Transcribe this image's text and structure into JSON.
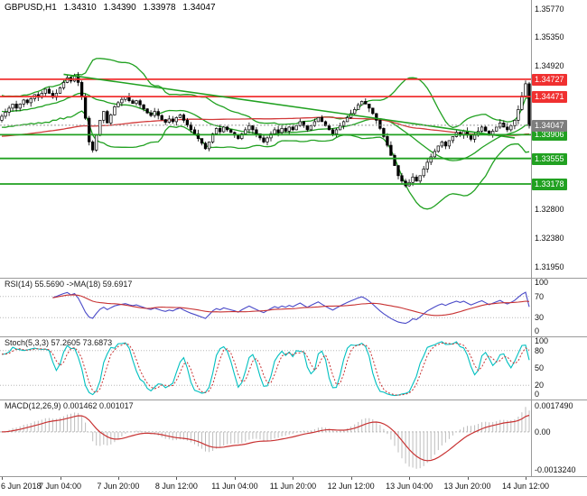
{
  "header": {
    "symbol": "GBPUSD,H1",
    "open": "1.34310",
    "high": "1.34390",
    "low": "1.33978",
    "close": "1.34047"
  },
  "colors": {
    "background": "#ffffff",
    "bull_candle": "#ffffff",
    "bear_candle": "#000000",
    "candle_outline": "#000000",
    "resistance": "#f03030",
    "support": "#21a121",
    "bollinger": "#21a121",
    "ma_red": "#d23a3a",
    "trendline": "#21a121",
    "current_line": "#999999",
    "current_badge": "#7d7d7d",
    "rsi_line": "#4a4ac8",
    "rsi_ma": "#c83232",
    "stoch_k": "#00c0c0",
    "stoch_d": "#c83232",
    "macd_hist": "#bdbdbd",
    "macd_signal": "#c83232",
    "grid_dotted": "#b8b8b8",
    "separator": "#9a9a9a",
    "axis_text": "#111111"
  },
  "chart_data": {
    "type": "candlestick",
    "symbol": "GBPUSD",
    "timeframe": "H1",
    "ylim": [
      1.3179,
      1.359
    ],
    "grid": false,
    "closes": [
      1.3418,
      1.3424,
      1.343,
      1.3436,
      1.343,
      1.3436,
      1.3442,
      1.3438,
      1.3444,
      1.345,
      1.3446,
      1.3452,
      1.3458,
      1.3452,
      1.3446,
      1.3452,
      1.346,
      1.3468,
      1.3475,
      1.347,
      1.3478,
      1.3468,
      1.3448,
      1.3415,
      1.338,
      1.3368,
      1.339,
      1.3412,
      1.3425,
      1.3408,
      1.342,
      1.3432,
      1.3438,
      1.3443,
      1.3447,
      1.3441,
      1.3437,
      1.3441,
      1.3435,
      1.3429,
      1.3423,
      1.3419,
      1.3425,
      1.3419,
      1.3413,
      1.3409,
      1.3414,
      1.341,
      1.3416,
      1.342,
      1.3412,
      1.3405,
      1.3398,
      1.3392,
      1.3385,
      1.3378,
      1.337,
      1.338,
      1.3392,
      1.34,
      1.3395,
      1.3402,
      1.3398,
      1.3394,
      1.339,
      1.3385,
      1.3392,
      1.3398,
      1.3404,
      1.3398,
      1.3392,
      1.3386,
      1.338,
      1.3386,
      1.3392,
      1.3398,
      1.3394,
      1.34,
      1.3396,
      1.3402,
      1.3398,
      1.3404,
      1.341,
      1.3404,
      1.3398,
      1.3404,
      1.341,
      1.3416,
      1.341,
      1.3404,
      1.3398,
      1.3392,
      1.3398,
      1.3404,
      1.341,
      1.3416,
      1.3422,
      1.3428,
      1.3435,
      1.344,
      1.3436,
      1.343,
      1.3422,
      1.3412,
      1.34,
      1.3388,
      1.3375,
      1.336,
      1.3345,
      1.333,
      1.3322,
      1.3315,
      1.332,
      1.3328,
      1.3322,
      1.333,
      1.334,
      1.335,
      1.3358,
      1.3366,
      1.3374,
      1.338,
      1.3374,
      1.3382,
      1.3388,
      1.3394,
      1.339,
      1.3396,
      1.339,
      1.3384,
      1.339,
      1.3396,
      1.3402,
      1.3396,
      1.339,
      1.3396,
      1.3402,
      1.3408,
      1.3402,
      1.3398,
      1.3404,
      1.3412,
      1.3428,
      1.3448,
      1.3466,
      1.3404
    ],
    "levels": [
      {
        "price": 1.34727,
        "text": "1.34727",
        "color": "#f03030",
        "kind": "resistance"
      },
      {
        "price": 1.34471,
        "text": "1.34471",
        "color": "#f03030",
        "kind": "resistance"
      },
      {
        "price": 1.33906,
        "text": "1.33906",
        "color": "#21a121",
        "kind": "support"
      },
      {
        "price": 1.33555,
        "text": "1.33555",
        "color": "#21a121",
        "kind": "support"
      },
      {
        "price": 1.33178,
        "text": "1.33178",
        "color": "#21a121",
        "kind": "support"
      }
    ],
    "current_price": {
      "value": 1.34047,
      "text": "1.34047"
    },
    "trendline": {
      "bar1": 17,
      "price1": 1.348,
      "bar2": 141,
      "price2": 1.3386
    },
    "bollinger_period": 20,
    "bollinger_dev": 2,
    "red_ma_period": 90,
    "price_ticks": [
      {
        "text": "1.35770",
        "price": 1.3577
      },
      {
        "text": "1.35350",
        "price": 1.3535
      },
      {
        "text": "1.34920",
        "price": 1.3492
      },
      {
        "text": "1.32800",
        "price": 1.328
      },
      {
        "text": "1.32380",
        "price": 1.3238
      },
      {
        "text": "1.31950",
        "price": 1.3195
      }
    ],
    "time_labels": [
      {
        "text": "6 Jun 2018",
        "bar": 0
      },
      {
        "text": "7 Jun 04:00",
        "bar": 16
      },
      {
        "text": "7 Jun 20:00",
        "bar": 32
      },
      {
        "text": "8 Jun 12:00",
        "bar": 48
      },
      {
        "text": "11 Jun 04:00",
        "bar": 64
      },
      {
        "text": "11 Jun 20:00",
        "bar": 80
      },
      {
        "text": "12 Jun 12:00",
        "bar": 96
      },
      {
        "text": "13 Jun 04:00",
        "bar": 112
      },
      {
        "text": "13 Jun 20:00",
        "bar": 128
      },
      {
        "text": "14 Jun 12:00",
        "bar": 144
      }
    ],
    "panels": {
      "rsi": {
        "label": "RSI(14) 55.5690 ->MA(18) 59.6917",
        "period": 14,
        "ma_period": 18,
        "current": 55.569,
        "ma_current": 59.6917,
        "levels": [
          70,
          30
        ],
        "axis": [
          {
            "text": "100",
            "value": 100
          },
          {
            "text": "70",
            "value": 70
          },
          {
            "text": "30",
            "value": 30
          },
          {
            "text": "0",
            "value": 0
          }
        ]
      },
      "stoch": {
        "label": "Stoch(5,3,3) 57.2605 73.6873",
        "k_period": 5,
        "k_slowing": 3,
        "d_period": 3,
        "current": 57.2605,
        "signal_current": 73.6873,
        "levels": [
          80,
          20
        ],
        "axis": [
          {
            "text": "100",
            "value": 100
          },
          {
            "text": "80",
            "value": 80
          },
          {
            "text": "50",
            "value": 50
          },
          {
            "text": "20",
            "value": 20
          },
          {
            "text": "0",
            "value": 0
          }
        ]
      },
      "macd": {
        "label": "MACD(12,26,9) 0.001462 0.001017",
        "fast": 12,
        "slow": 26,
        "signal": 9,
        "current": 0.001462,
        "signal_current": 0.001017,
        "axis_top": "0.0017490",
        "axis_zero": "0.00",
        "axis_bottom": "-0.0013240"
      }
    }
  }
}
